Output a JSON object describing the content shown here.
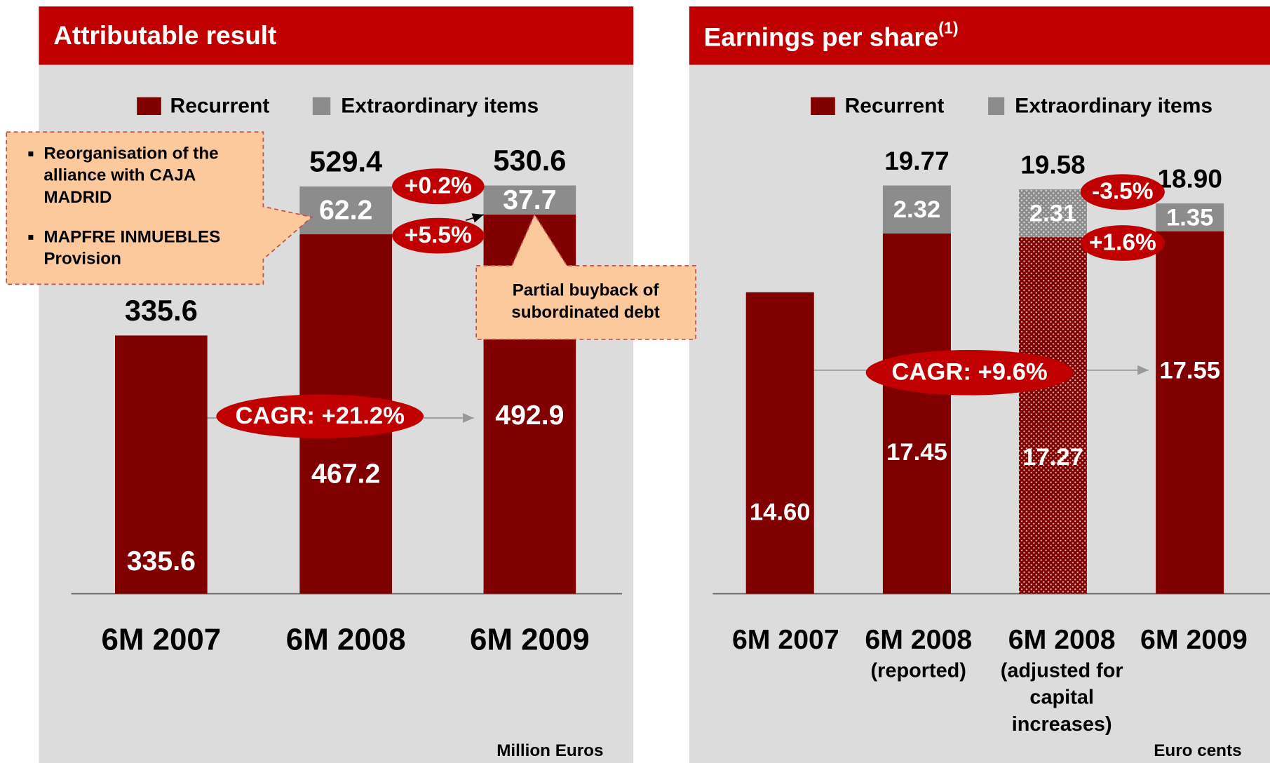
{
  "chart_data": [
    {
      "type": "bar",
      "stacked": true,
      "title": "Attributable result",
      "categories": [
        "6M 2007",
        "6M 2008",
        "6M 2009"
      ],
      "series": [
        {
          "name": "Recurrent",
          "color": "#800000",
          "values": [
            335.6,
            467.2,
            492.9
          ]
        },
        {
          "name": "Extraordinary items",
          "color": "#8c8c8c",
          "values": [
            null,
            62.2,
            37.7
          ]
        }
      ],
      "totals": [
        335.6,
        529.4,
        530.6
      ],
      "changes": [
        "+0.2%",
        "+5.5%"
      ],
      "cagr": "CAGR: +21.2%",
      "callouts": [
        {
          "items": [
            "Reorganisation of the alliance with CAJA MADRID",
            "MAPFRE INMUEBLES Provision"
          ]
        },
        {
          "text": "Partial buyback of subordinated debt"
        }
      ],
      "unit": "Million Euros"
    },
    {
      "type": "bar",
      "stacked": true,
      "title": "Earnings per share",
      "title_note": "(1)",
      "categories": [
        "6M 2007",
        "6M 2008",
        "6M 2008",
        "6M 2009"
      ],
      "category_notes": [
        null,
        "(reported)",
        "(adjusted for capital increases)",
        null
      ],
      "patterned": [
        false,
        false,
        true,
        false
      ],
      "series": [
        {
          "name": "Recurrent",
          "color": "#800000",
          "values": [
            14.6,
            17.45,
            17.27,
            17.55
          ],
          "value_labels": [
            "14.60",
            "17.45",
            "17.27",
            "17.55"
          ]
        },
        {
          "name": "Extraordinary items",
          "color": "#8c8c8c",
          "values": [
            null,
            2.32,
            2.31,
            1.35
          ],
          "value_labels": [
            null,
            "2.32",
            "2.31",
            "1.35"
          ]
        }
      ],
      "totals": [
        null,
        19.77,
        19.58,
        18.9
      ],
      "total_labels": [
        null,
        "19.77",
        "19.58",
        "18.90"
      ],
      "changes": [
        "-3.5%",
        "+1.6%"
      ],
      "cagr": "CAGR: +9.6%",
      "unit": "Euro cents"
    }
  ]
}
